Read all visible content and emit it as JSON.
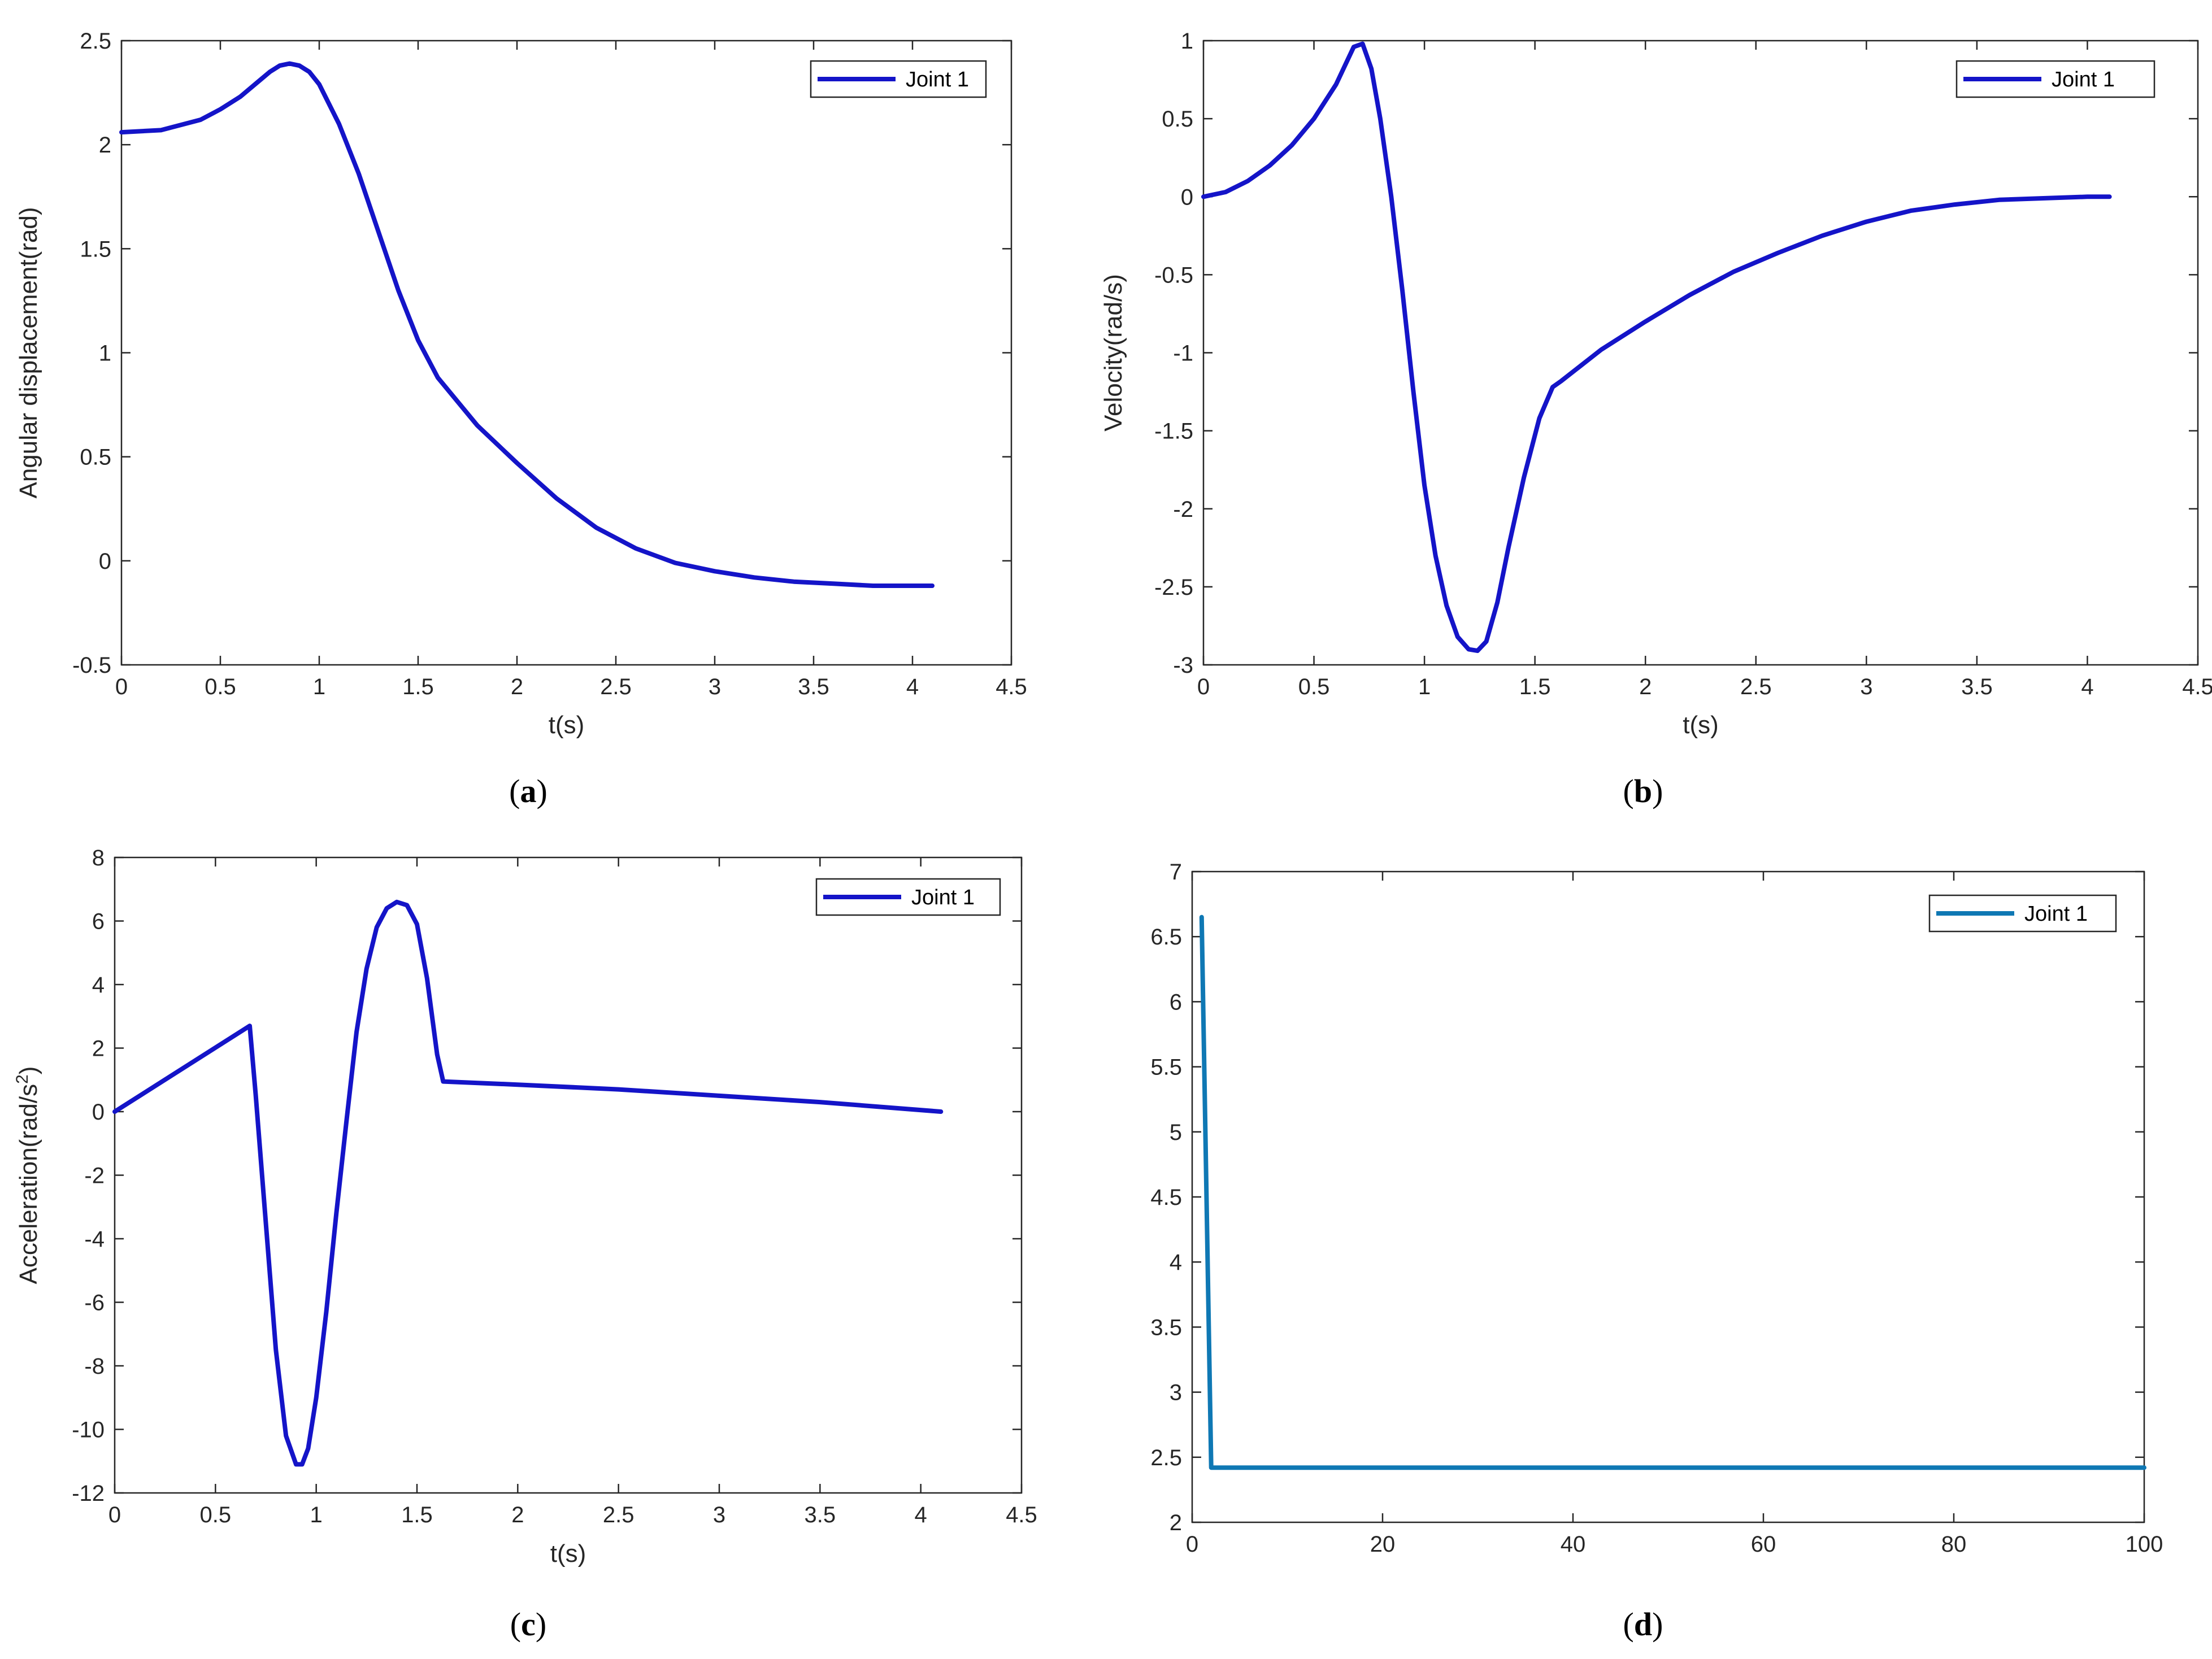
{
  "chart_data": [
    {
      "type": "line",
      "caption": "a",
      "xlabel": "t(s)",
      "ylabel": "Angular displacement(rad)",
      "xlim": [
        0,
        4.5
      ],
      "ylim": [
        -0.5,
        2.5
      ],
      "xticks": [
        "0",
        "0.5",
        "1",
        "1.5",
        "2",
        "2.5",
        "3",
        "3.5",
        "4",
        "4.5"
      ],
      "yticks": [
        "-0.5",
        "0",
        "0.5",
        "1",
        "1.5",
        "2",
        "2.5"
      ],
      "legend_position": "top-right",
      "grid": false,
      "series": [
        {
          "name": "Joint 1",
          "color": "#1414c8",
          "x": [
            0,
            0.2,
            0.4,
            0.5,
            0.6,
            0.7,
            0.75,
            0.8,
            0.85,
            0.9,
            0.95,
            1.0,
            1.1,
            1.2,
            1.3,
            1.4,
            1.5,
            1.6,
            1.8,
            2.0,
            2.2,
            2.4,
            2.6,
            2.8,
            3.0,
            3.2,
            3.4,
            3.6,
            3.8,
            4.0,
            4.1
          ],
          "y": [
            2.06,
            2.07,
            2.12,
            2.17,
            2.23,
            2.31,
            2.35,
            2.38,
            2.39,
            2.38,
            2.35,
            2.29,
            2.1,
            1.86,
            1.58,
            1.3,
            1.06,
            0.88,
            0.65,
            0.47,
            0.3,
            0.16,
            0.06,
            -0.01,
            -0.05,
            -0.08,
            -0.1,
            -0.11,
            -0.12,
            -0.12,
            -0.12
          ]
        }
      ]
    },
    {
      "type": "line",
      "caption": "b",
      "xlabel": "t(s)",
      "ylabel": "Velocity(rad/s)",
      "xlim": [
        0,
        4.5
      ],
      "ylim": [
        -3,
        1
      ],
      "xticks": [
        "0",
        "0.5",
        "1",
        "1.5",
        "2",
        "2.5",
        "3",
        "3.5",
        "4",
        "4.5"
      ],
      "yticks": [
        "-3",
        "-2.5",
        "-2",
        "-1.5",
        "-1",
        "-0.5",
        "0",
        "0.5",
        "1"
      ],
      "legend_position": "top-right",
      "grid": false,
      "series": [
        {
          "name": "Joint 1",
          "color": "#1414c8",
          "x": [
            0,
            0.1,
            0.2,
            0.3,
            0.4,
            0.5,
            0.6,
            0.68,
            0.72,
            0.76,
            0.8,
            0.85,
            0.9,
            0.95,
            1.0,
            1.05,
            1.1,
            1.15,
            1.2,
            1.24,
            1.28,
            1.33,
            1.38,
            1.45,
            1.52,
            1.58,
            1.62,
            1.8,
            2.0,
            2.2,
            2.4,
            2.6,
            2.8,
            3.0,
            3.2,
            3.4,
            3.6,
            3.8,
            4.0,
            4.1
          ],
          "y": [
            0,
            0.03,
            0.1,
            0.2,
            0.33,
            0.5,
            0.72,
            0.96,
            0.98,
            0.82,
            0.5,
            0.0,
            -0.6,
            -1.25,
            -1.85,
            -2.3,
            -2.62,
            -2.82,
            -2.9,
            -2.91,
            -2.85,
            -2.6,
            -2.25,
            -1.8,
            -1.42,
            -1.22,
            -1.18,
            -0.98,
            -0.8,
            -0.63,
            -0.48,
            -0.36,
            -0.25,
            -0.16,
            -0.09,
            -0.05,
            -0.02,
            -0.01,
            0,
            0
          ]
        }
      ]
    },
    {
      "type": "line",
      "caption": "c",
      "xlabel": "t(s)",
      "ylabel": "Acceleration(rad/s",
      "ylabel_superscript": "2",
      "ylabel_suffix": ")",
      "xlim": [
        0,
        4.5
      ],
      "ylim": [
        -12,
        8
      ],
      "xticks": [
        "0",
        "0.5",
        "1",
        "1.5",
        "2",
        "2.5",
        "3",
        "3.5",
        "4",
        "4.5"
      ],
      "yticks": [
        "-12",
        "-10",
        "-8",
        "-6",
        "-4",
        "-2",
        "0",
        "2",
        "4",
        "6",
        "8"
      ],
      "legend_position": "top-right",
      "grid": false,
      "series": [
        {
          "name": "Joint 1",
          "color": "#1414c8",
          "x": [
            0,
            0.67,
            0.7,
            0.75,
            0.8,
            0.85,
            0.9,
            0.93,
            0.96,
            1.0,
            1.05,
            1.1,
            1.15,
            1.2,
            1.25,
            1.3,
            1.35,
            1.4,
            1.45,
            1.5,
            1.55,
            1.6,
            1.63,
            2.0,
            2.5,
            3.0,
            3.5,
            4.1
          ],
          "y": [
            0,
            2.7,
            0.5,
            -3.5,
            -7.5,
            -10.2,
            -11.1,
            -11.1,
            -10.6,
            -9.0,
            -6.3,
            -3.2,
            -0.3,
            2.5,
            4.5,
            5.8,
            6.4,
            6.6,
            6.5,
            5.9,
            4.2,
            1.8,
            0.95,
            0.85,
            0.7,
            0.5,
            0.3,
            0
          ]
        }
      ]
    },
    {
      "type": "line",
      "caption": "d",
      "xlabel": "",
      "ylabel": "",
      "xlim": [
        0,
        100
      ],
      "ylim": [
        2,
        7
      ],
      "xticks": [
        "0",
        "20",
        "40",
        "60",
        "80",
        "100"
      ],
      "yticks": [
        "2",
        "2.5",
        "3",
        "3.5",
        "4",
        "4.5",
        "5",
        "5.5",
        "6",
        "6.5",
        "7"
      ],
      "legend_position": "top-right",
      "grid": false,
      "series": [
        {
          "name": "Joint 1",
          "color": "#0f78b4",
          "x": [
            1,
            2,
            100
          ],
          "y": [
            6.65,
            2.42,
            2.42
          ]
        }
      ]
    }
  ]
}
